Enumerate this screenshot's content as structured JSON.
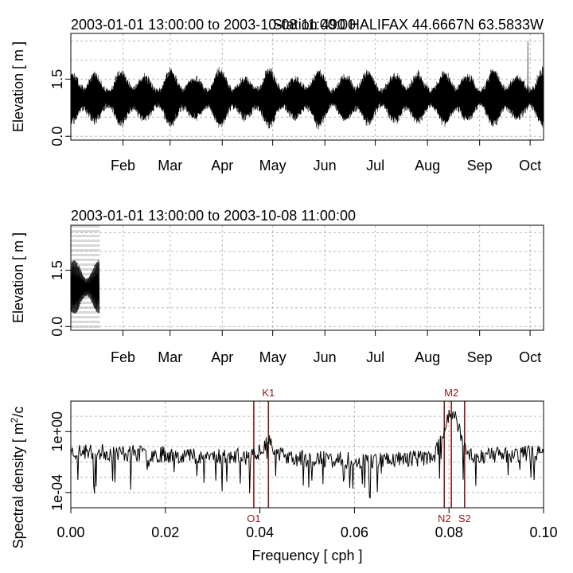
{
  "chart_data": [
    {
      "type": "line",
      "name": "elevation-full",
      "title_left": "2003-01-01 13:00:00 to 2003-10-08 11:00:00",
      "title_right": "Station 490 HALIFAX 44.6667N 63.5833W",
      "xlabel": "",
      "ylabel": "Elevation [ m ]",
      "x_month_labels": [
        "Feb",
        "Mar",
        "Apr",
        "May",
        "Jun",
        "Jul",
        "Aug",
        "Sep",
        "Oct"
      ],
      "x_month_days": [
        31,
        59,
        90,
        120,
        151,
        181,
        212,
        243,
        273
      ],
      "xlim_days": [
        0,
        281
      ],
      "ylim": [
        -0.1,
        2.7
      ],
      "yticks": [
        0.0,
        1.5
      ],
      "ytick_labels": [
        "0.0",
        "1.5"
      ],
      "grid": true,
      "series_description": "hourly sea-surface elevation, tidal oscillation roughly between 0.1 and 2.1 m",
      "mean_level": 1.0
    },
    {
      "type": "line",
      "name": "elevation-zoom",
      "title_left": "2003-01-01 13:00:00 to 2003-10-08 11:00:00",
      "xlabel": "",
      "ylabel": "Elevation [ m ]",
      "x_month_labels": [
        "Feb",
        "Mar",
        "Apr",
        "May",
        "Jun",
        "Jul",
        "Aug",
        "Sep",
        "Oct"
      ],
      "x_month_days": [
        31,
        59,
        90,
        120,
        151,
        181,
        212,
        243,
        273
      ],
      "xlim_days": [
        0,
        281
      ],
      "data_xlim_days": [
        0,
        17
      ],
      "ylim": [
        -0.1,
        2.7
      ],
      "yticks": [
        0.0,
        1.5
      ],
      "ytick_labels": [
        "0.0",
        "1.5"
      ],
      "grid": true
    },
    {
      "type": "line",
      "name": "spectrum",
      "xlabel": "Frequency [ cph ]",
      "ylabel": "Spectral density [ m²/cph ]",
      "ylabel_visible": "Spectral density [ m",
      "ylabel_sup": "2",
      "ylabel_tail": "/c",
      "xlim": [
        0.0,
        0.1
      ],
      "xticks": [
        0.0,
        0.02,
        0.04,
        0.06,
        0.08,
        0.1
      ],
      "xtick_labels": [
        "0.00",
        "0.02",
        "0.04",
        "0.06",
        "0.08",
        "0.10"
      ],
      "ylog": true,
      "ylim_log10": [
        -5,
        2
      ],
      "yticks_log10": [
        -4,
        0
      ],
      "ytick_labels": [
        "1e-04",
        "1e+00"
      ],
      "grid": true,
      "constituents": [
        {
          "label": "O1",
          "freq": 0.0387,
          "position": "bottom"
        },
        {
          "label": "K1",
          "freq": 0.0418,
          "position": "top"
        },
        {
          "label": "N2",
          "freq": 0.079,
          "position": "bottom"
        },
        {
          "label": "M2",
          "freq": 0.0805,
          "position": "top"
        },
        {
          "label": "S2",
          "freq": 0.0833,
          "position": "bottom"
        }
      ],
      "peaks": [
        {
          "freq": 0.0418,
          "log10_density": -0.7
        },
        {
          "freq": 0.0805,
          "log10_density": 1.3
        }
      ]
    }
  ]
}
